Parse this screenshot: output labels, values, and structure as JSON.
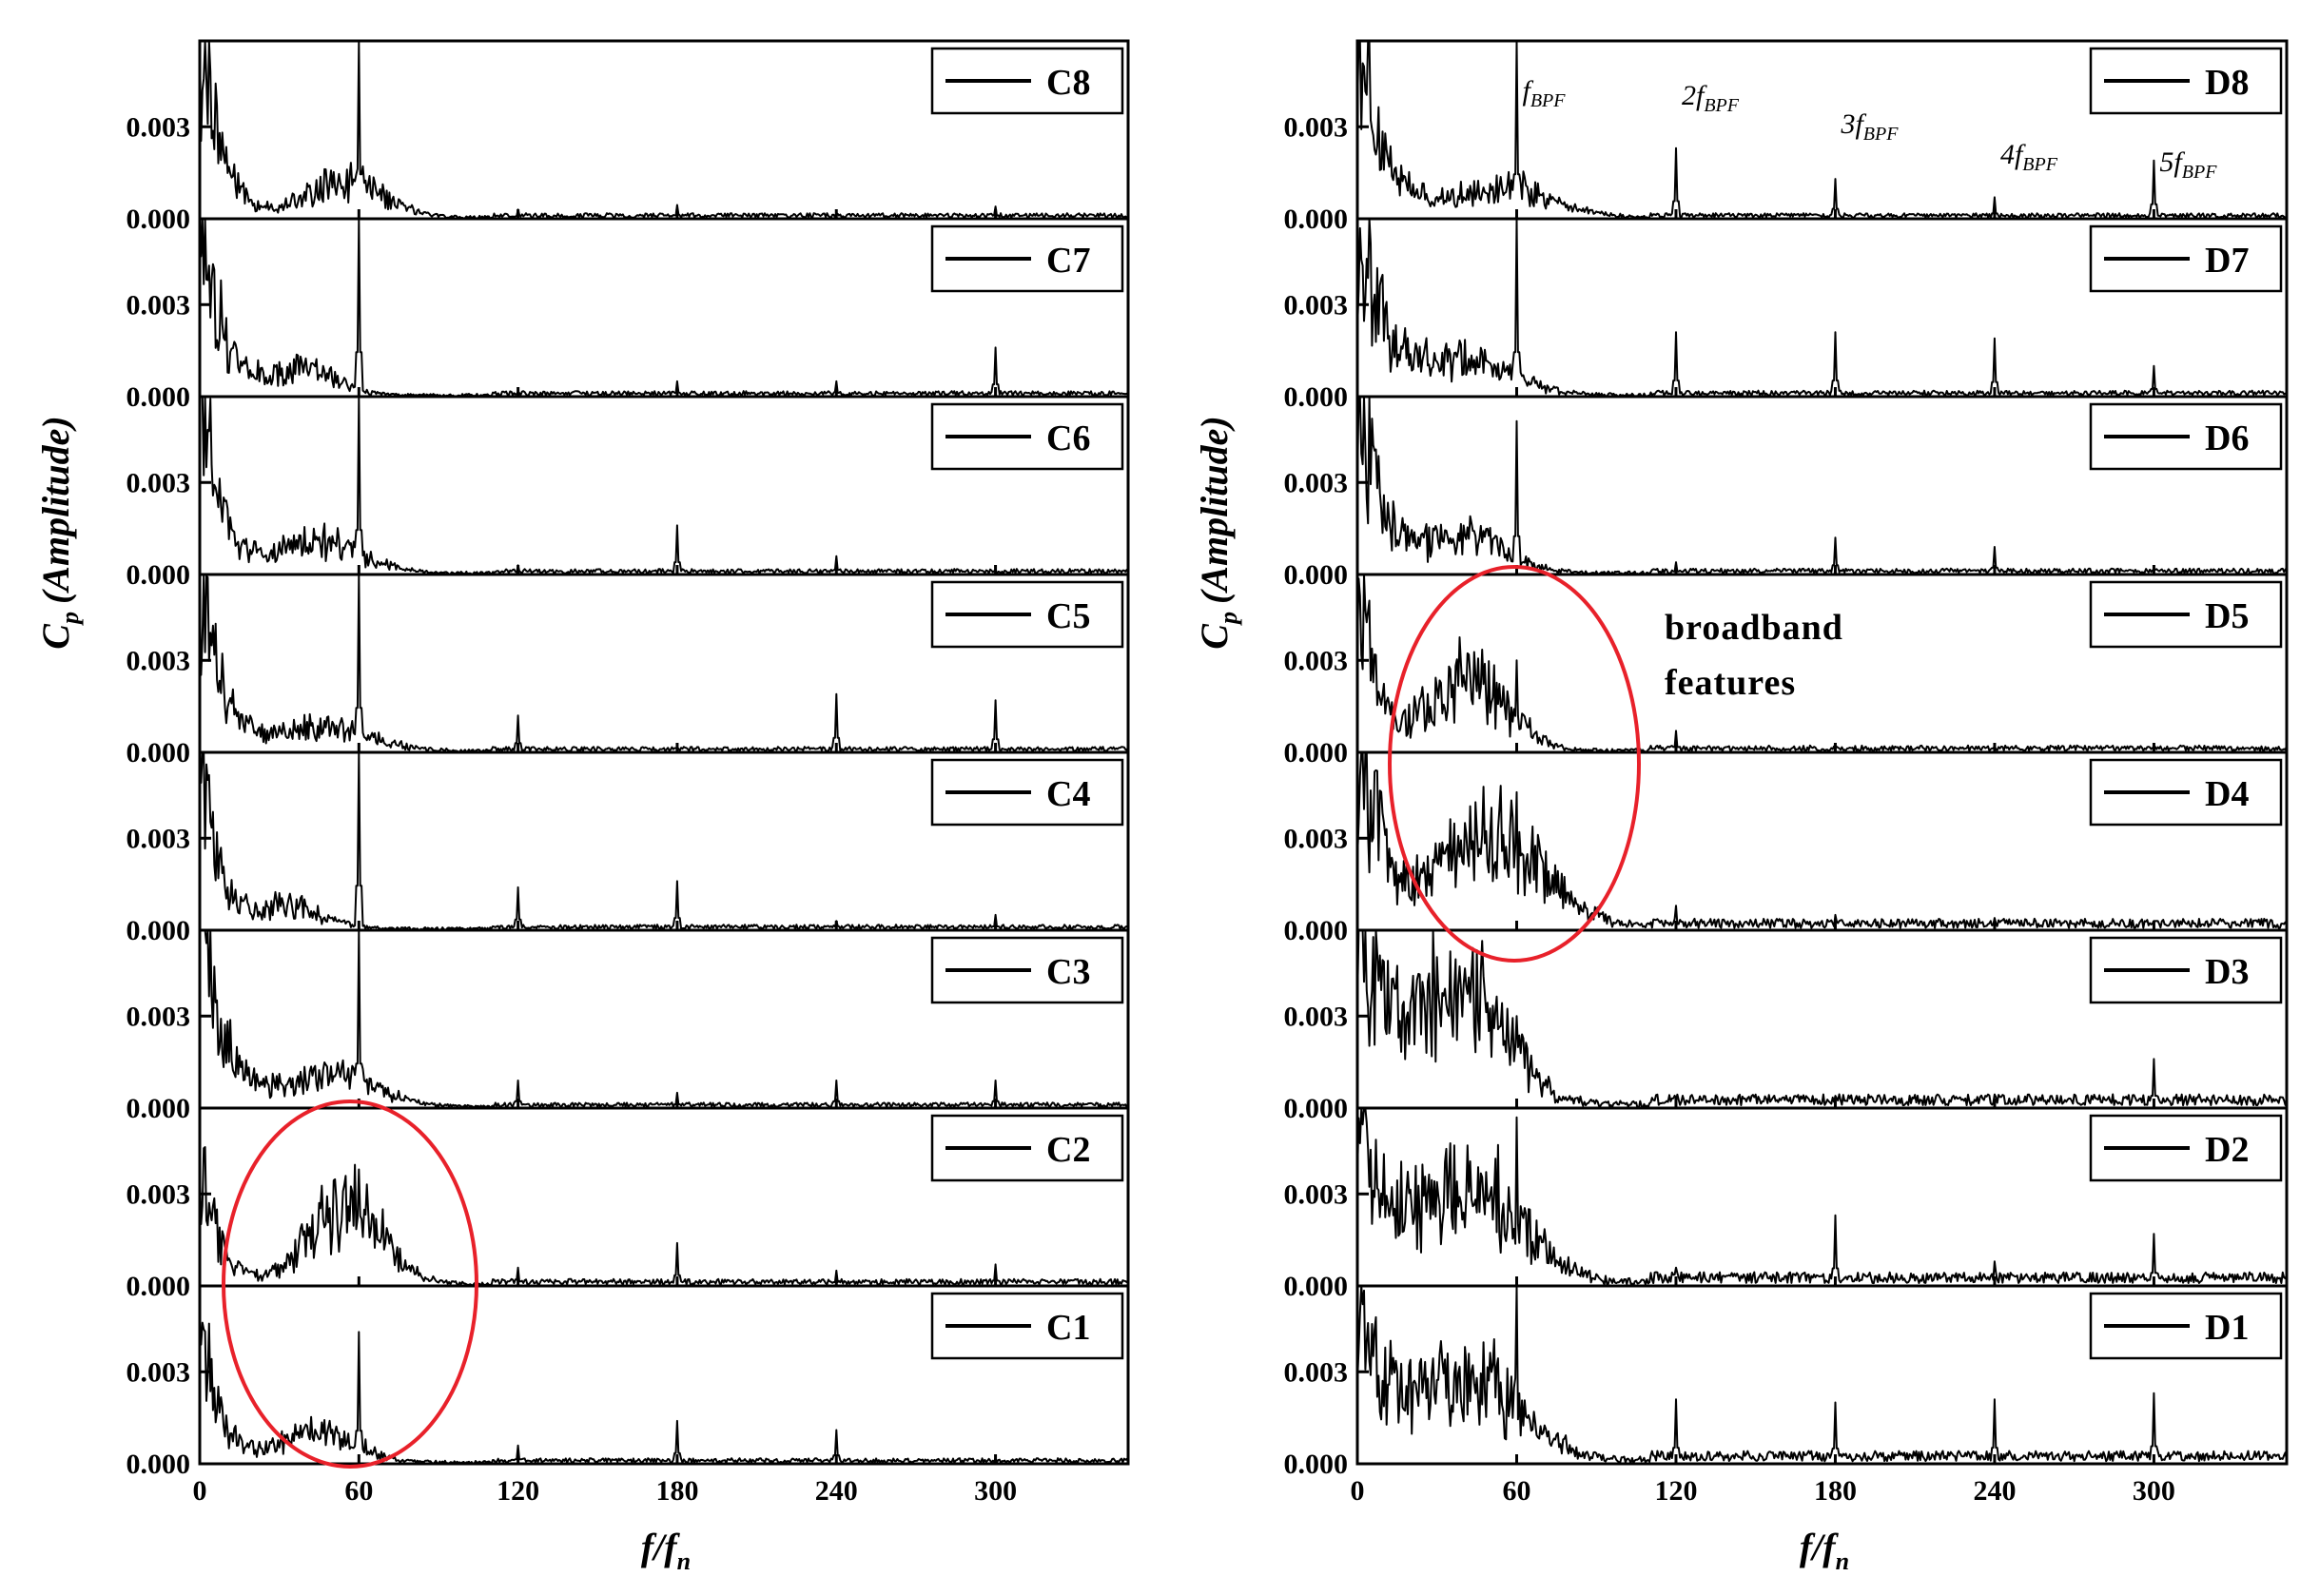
{
  "chart_data": [
    {
      "type": "line",
      "panel_group": "C",
      "xlabel": "f/fn",
      "ylabel": "Cp (Amplitude)",
      "xlim": [
        0,
        350
      ],
      "ylim": [
        0,
        0.0058
      ],
      "xticks": [
        0,
        60,
        120,
        180,
        240,
        300
      ],
      "xtick_labels": [
        "0",
        "60",
        "120",
        "180",
        "240",
        "300"
      ],
      "yticks": [
        0,
        0.003
      ],
      "ytick_labels": [
        "0.000",
        "0.003"
      ],
      "grid": false,
      "legend_position": "top-right",
      "color": "#000000",
      "series": [
        {
          "name": "C8",
          "low_freq_peak": 0.0058,
          "decay": 7,
          "hump": {
            "center": 55,
            "width": 14,
            "height": 0.0012
          },
          "bpf_amplitudes": [
            0.0058,
            0.0003,
            0.00045,
            0.00018,
            0.0004
          ],
          "noise": 0.00012
        },
        {
          "name": "C7",
          "low_freq_peak": 0.0052,
          "decay": 8,
          "hump": {
            "center": 40,
            "width": 12,
            "height": 0.0008
          },
          "bpf_amplitudes": [
            0.0058,
            0.0001,
            0.0005,
            0.0005,
            0.0016
          ],
          "noise": 0.00012
        },
        {
          "name": "C6",
          "low_freq_peak": 0.0052,
          "decay": 7,
          "hump": {
            "center": 45,
            "width": 16,
            "height": 0.001
          },
          "bpf_amplitudes": [
            0.0058,
            0.0003,
            0.0016,
            0.0006,
            0.0001
          ],
          "noise": 0.00012
        },
        {
          "name": "C5",
          "low_freq_peak": 0.0052,
          "decay": 7,
          "hump": {
            "center": 45,
            "width": 18,
            "height": 0.0008
          },
          "bpf_amplitudes": [
            0.0058,
            0.0012,
            0.0001,
            0.0019,
            0.0017
          ],
          "noise": 0.00012
        },
        {
          "name": "C4",
          "low_freq_peak": 0.0052,
          "decay": 7,
          "hump": {
            "center": 35,
            "width": 12,
            "height": 0.0007
          },
          "bpf_amplitudes": [
            0.0058,
            0.0014,
            0.0016,
            0.0003,
            0.0005
          ],
          "noise": 0.00012
        },
        {
          "name": "C3",
          "low_freq_peak": 0.0054,
          "decay": 9,
          "hump": {
            "center": 50,
            "width": 16,
            "height": 0.0011
          },
          "bpf_amplitudes": [
            0.0058,
            0.0009,
            0.0005,
            0.0009,
            0.0009
          ],
          "noise": 0.00012
        },
        {
          "name": "C2",
          "low_freq_peak": 0.0038,
          "decay": 6,
          "hump": {
            "center": 55,
            "width": 14,
            "height": 0.0025
          },
          "bpf_amplitudes": [
            0.0038,
            0.0006,
            0.0014,
            0.0005,
            0.0007
          ],
          "noise": 0.00015
        },
        {
          "name": "C1",
          "low_freq_peak": 0.004,
          "decay": 7,
          "hump": {
            "center": 45,
            "width": 14,
            "height": 0.001
          },
          "bpf_amplitudes": [
            0.0043,
            0.0006,
            0.0014,
            0.0011,
            0.0002
          ],
          "noise": 0.00012
        }
      ]
    },
    {
      "type": "line",
      "panel_group": "D",
      "xlabel": "f/fn",
      "ylabel": "Cp (Amplitude)",
      "xlim": [
        0,
        350
      ],
      "ylim": [
        0,
        0.0058
      ],
      "xticks": [
        0,
        60,
        120,
        180,
        240,
        300
      ],
      "xtick_labels": [
        "0",
        "60",
        "120",
        "180",
        "240",
        "300"
      ],
      "yticks": [
        0,
        0.003
      ],
      "ytick_labels": [
        "0.000",
        "0.003"
      ],
      "grid": false,
      "legend_position": "top-right",
      "color": "#000000",
      "series": [
        {
          "name": "D8",
          "low_freq_peak": 0.0058,
          "decay": 9,
          "hump": {
            "center": 55,
            "width": 18,
            "height": 0.001
          },
          "bpf_amplitudes": [
            0.0058,
            0.0023,
            0.0013,
            0.0007,
            0.0019
          ],
          "noise": 0.00012
        },
        {
          "name": "D7",
          "low_freq_peak": 0.0055,
          "decay": 9,
          "hump": {
            "center": 40,
            "width": 18,
            "height": 0.0011
          },
          "bpf_amplitudes": [
            0.0058,
            0.0021,
            0.0021,
            0.0019,
            0.001
          ],
          "noise": 0.00013
        },
        {
          "name": "D6",
          "low_freq_peak": 0.0055,
          "decay": 8,
          "hump": {
            "center": 40,
            "width": 15,
            "height": 0.0012
          },
          "bpf_amplitudes": [
            0.005,
            0.0004,
            0.0012,
            0.0009,
            0.0001
          ],
          "noise": 0.00013
        },
        {
          "name": "D5",
          "low_freq_peak": 0.005,
          "decay": 7,
          "hump": {
            "center": 42,
            "width": 14,
            "height": 0.0025
          },
          "bpf_amplitudes": [
            0.003,
            0.0007,
            0.0002,
            0.0002,
            0.0001
          ],
          "noise": 0.00015
        },
        {
          "name": "D4",
          "low_freq_peak": 0.005,
          "decay": 10,
          "hump": {
            "center": 50,
            "width": 20,
            "height": 0.003
          },
          "bpf_amplitudes": [
            0.0045,
            0.0008,
            0.0005,
            0.0004,
            0.0003
          ],
          "noise": 0.00025
        },
        {
          "name": "D3",
          "low_freq_peak": 0.0055,
          "decay": 12,
          "hump": {
            "center": 40,
            "width": 16,
            "height": 0.0038
          },
          "bpf_amplitudes": [
            0.003,
            0.0003,
            0.0004,
            0.0002,
            0.0016
          ],
          "noise": 0.0003
        },
        {
          "name": "D2",
          "low_freq_peak": 0.0045,
          "decay": 14,
          "hump": {
            "center": 45,
            "width": 18,
            "height": 0.003
          },
          "bpf_amplitudes": [
            0.0055,
            0.0006,
            0.0023,
            0.0008,
            0.0017
          ],
          "noise": 0.0003
        },
        {
          "name": "D1",
          "low_freq_peak": 0.005,
          "decay": 14,
          "hump": {
            "center": 45,
            "width": 18,
            "height": 0.0025
          },
          "bpf_amplitudes": [
            0.0058,
            0.0021,
            0.002,
            0.0021,
            0.0023
          ],
          "noise": 0.00028
        }
      ]
    }
  ],
  "annotations": {
    "bpf_labels": [
      {
        "coef": "",
        "f": "f",
        "sub": "BPF"
      },
      {
        "coef": "2",
        "f": "f",
        "sub": "BPF"
      },
      {
        "coef": "3",
        "f": "f",
        "sub": "BPF"
      },
      {
        "coef": "4",
        "f": "f",
        "sub": "BPF"
      },
      {
        "coef": "5",
        "f": "f",
        "sub": "BPF"
      }
    ],
    "broadband_line1": "broadband",
    "broadband_line2": "features",
    "highlight_color": "#e8212a"
  },
  "labels": {
    "ylabel_main": "C",
    "ylabel_sub": "p",
    "ylabel_rest": "(Amplitude)",
    "xlabel_main": "f/f",
    "xlabel_sub": "n"
  }
}
